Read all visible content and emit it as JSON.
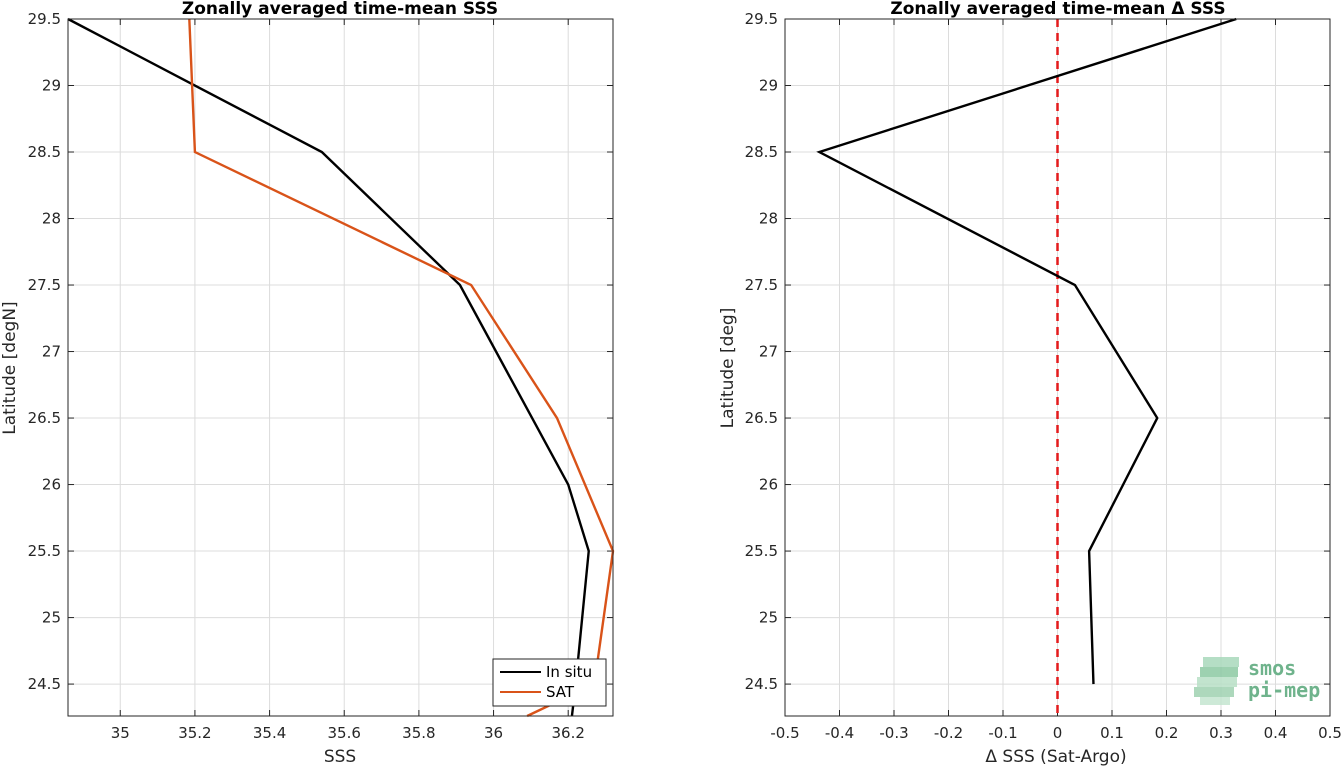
{
  "chart_data": [
    {
      "type": "line",
      "title": "Zonally averaged time-mean SSS",
      "xlabel": "SSS",
      "ylabel": "Latitude [degN]",
      "xlim": [
        34.86,
        36.32
      ],
      "ylim": [
        24.26,
        29.5
      ],
      "x_ticks": [
        35,
        35.2,
        35.4,
        35.6,
        35.8,
        36,
        36.2
      ],
      "x_tick_labels": [
        "35",
        "35.2",
        "35.4",
        "35.6",
        "35.8",
        "36",
        "36.2"
      ],
      "y_ticks": [
        24.5,
        25,
        25.5,
        26,
        26.5,
        27,
        27.5,
        28,
        28.5,
        29,
        29.5
      ],
      "y_tick_labels": [
        "24.5",
        "25",
        "25.5",
        "26",
        "26.5",
        "27",
        "27.5",
        "28",
        "28.5",
        "29",
        "29.5"
      ],
      "grid": true,
      "legend_position": "bottom-right",
      "series": [
        {
          "name": "In situ",
          "color": "#000000",
          "points": [
            [
              36.21,
              24.26
            ],
            [
              36.22,
              24.5
            ],
            [
              36.255,
              25.5
            ],
            [
              36.2,
              26.0
            ],
            [
              35.91,
              27.5
            ],
            [
              35.54,
              28.5
            ],
            [
              35.2,
              29.0
            ],
            [
              34.86,
              29.5
            ]
          ]
        },
        {
          "name": "SAT",
          "color": "#d95319",
          "points": [
            [
              36.09,
              24.26
            ],
            [
              36.27,
              24.5
            ],
            [
              36.32,
              25.5
            ],
            [
              36.17,
              26.5
            ],
            [
              35.94,
              27.5
            ],
            [
              35.2,
              28.5
            ],
            [
              35.185,
              29.5
            ]
          ]
        }
      ]
    },
    {
      "type": "line",
      "title": "Zonally averaged time-mean Δ SSS",
      "xlabel": "Δ SSS (Sat-Argo)",
      "ylabel": "Latitude [deg]",
      "xlim": [
        -0.5,
        0.5
      ],
      "ylim": [
        24.26,
        29.5
      ],
      "x_ticks": [
        -0.5,
        -0.4,
        -0.3,
        -0.2,
        -0.1,
        0,
        0.1,
        0.2,
        0.3,
        0.4,
        0.5
      ],
      "x_tick_labels": [
        "-0.5",
        "-0.4",
        "-0.3",
        "-0.2",
        "-0.1",
        "0",
        "0.1",
        "0.2",
        "0.3",
        "0.4",
        "0.5"
      ],
      "y_ticks": [
        24.5,
        25,
        25.5,
        26,
        26.5,
        27,
        27.5,
        28,
        28.5,
        29,
        29.5
      ],
      "y_tick_labels": [
        "24.5",
        "25",
        "25.5",
        "26",
        "26.5",
        "27",
        "27.5",
        "28",
        "28.5",
        "29",
        "29.5"
      ],
      "grid": true,
      "reference_line": {
        "x": 0,
        "color": "#e41a1c",
        "style": "dashed"
      },
      "series": [
        {
          "color": "#000000",
          "points": [
            [
              0.066,
              24.5
            ],
            [
              0.058,
              25.5
            ],
            [
              0.183,
              26.5
            ],
            [
              0.032,
              27.5
            ],
            [
              -0.437,
              28.5
            ],
            [
              0.328,
              29.5
            ]
          ]
        }
      ]
    }
  ],
  "logo": {
    "line1": "smos",
    "line2": "pi-mep"
  }
}
